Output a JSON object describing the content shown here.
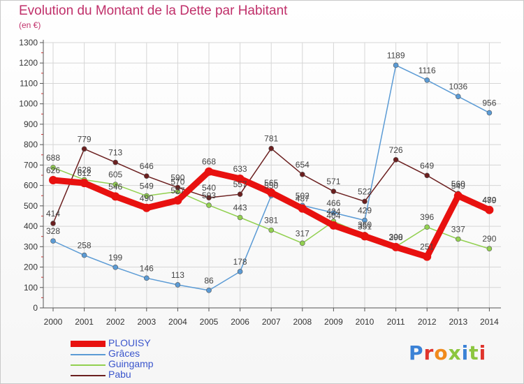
{
  "header": {
    "title": "Evolution du Montant de la Dette par Habitant",
    "unit": "(en €)"
  },
  "colors": {
    "title": "#c0306a",
    "legend_text": "#3a55cc",
    "grid": "#d6d6d6",
    "axis": "#555555"
  },
  "logo": {
    "text": "Proxiti",
    "letter_colors": [
      "#3b82d6",
      "#e0342c",
      "#f08a1c",
      "#8cc63f",
      "#3b82d6",
      "#8cc63f",
      "#e0342c"
    ]
  },
  "chart_data": {
    "type": "line",
    "title": "Evolution du Montant de la Dette par Habitant",
    "ylabel": "(en €)",
    "xlabel": "",
    "x": [
      "2000",
      "2001",
      "2002",
      "2003",
      "2004",
      "2005",
      "2006",
      "2007",
      "2008",
      "2009",
      "2010",
      "2011",
      "2012",
      "2013",
      "2014"
    ],
    "ylim": [
      0,
      1300
    ],
    "yticks": [
      0,
      100,
      200,
      300,
      400,
      500,
      600,
      700,
      800,
      900,
      1000,
      1100,
      1200,
      1300
    ],
    "grid": true,
    "legend": "bottom-left",
    "series": [
      {
        "name": "PLOUISY",
        "color": "#e8110f",
        "emphasis": true,
        "values": [
          626,
          612,
          546,
          490,
          527,
          668,
          633,
          565,
          487,
          404,
          351,
          298,
          251,
          549,
          480
        ]
      },
      {
        "name": "Grâces",
        "color": "#5b9bd5",
        "values": [
          328,
          258,
          199,
          146,
          113,
          86,
          178,
          550,
          502,
          466,
          429,
          1189,
          1116,
          1036,
          956
        ]
      },
      {
        "name": "Guingamp",
        "color": "#92d050",
        "values": [
          688,
          628,
          605,
          549,
          570,
          503,
          443,
          381,
          317,
          424,
          360,
          300,
          396,
          337,
          290
        ]
      },
      {
        "name": "Pabu",
        "color": "#6b1f1f",
        "values": [
          414,
          779,
          713,
          646,
          590,
          540,
          557,
          781,
          654,
          571,
          522,
          726,
          649,
          560,
          479
        ]
      }
    ]
  }
}
